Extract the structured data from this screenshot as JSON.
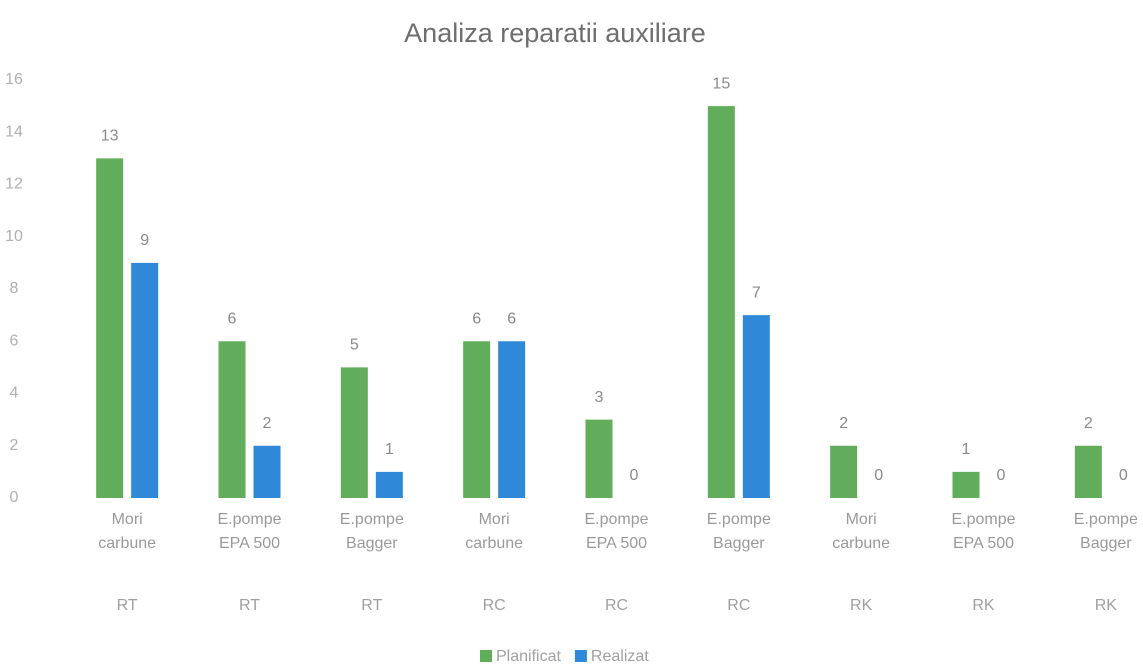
{
  "chart_data": {
    "type": "bar",
    "title": "Analiza reparatii auxiliare",
    "categories": [
      "Mori carbune",
      "E.pompe EPA 500",
      "E.pompe Bagger",
      "Mori carbune",
      "E.pompe EPA 500",
      "E.pompe Bagger",
      "Mori carbune",
      "E.pompe EPA 500",
      "E.pompe Bagger"
    ],
    "groups": [
      "RT",
      "RT",
      "RT",
      "RC",
      "RC",
      "RC",
      "RK",
      "RK",
      "RK"
    ],
    "series": [
      {
        "name": "Planificat",
        "color": "#62ad5b",
        "values": [
          13,
          6,
          5,
          6,
          3,
          15,
          2,
          1,
          2
        ]
      },
      {
        "name": "Realizat",
        "color": "#2f88d8",
        "values": [
          9,
          2,
          1,
          6,
          0,
          7,
          0,
          0,
          0
        ]
      }
    ],
    "ylim": [
      0,
      16
    ],
    "yticks": [
      0,
      2,
      4,
      6,
      8,
      10,
      12,
      14,
      16
    ],
    "grid": false,
    "legend": "bottom"
  }
}
